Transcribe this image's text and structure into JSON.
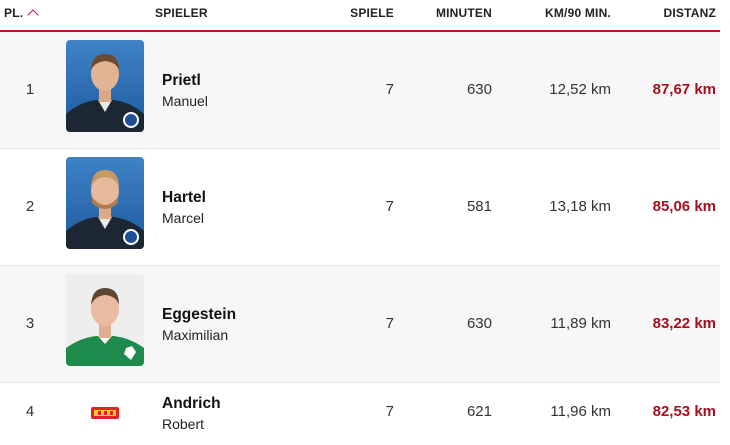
{
  "header": {
    "rank_label": "PL.",
    "player_label": "SPIELER",
    "games_label": "SPIELE",
    "minutes_label": "MINUTEN",
    "km90_label": "KM/90 MIN.",
    "distance_label": "DISTANZ"
  },
  "colors": {
    "accent": "#c8102e",
    "distance": "#a5101e",
    "row_alt": "#f7f7f7"
  },
  "rows": [
    {
      "rank": "1",
      "last_name": "Prietl",
      "first_name": "Manuel",
      "games": "7",
      "minutes": "630",
      "km_per_90": "12,52 km",
      "distance": "87,67 km",
      "club_icon": "arminia-bielefeld-crest"
    },
    {
      "rank": "2",
      "last_name": "Hartel",
      "first_name": "Marcel",
      "games": "7",
      "minutes": "581",
      "km_per_90": "13,18 km",
      "distance": "85,06 km",
      "club_icon": "arminia-bielefeld-crest"
    },
    {
      "rank": "3",
      "last_name": "Eggestein",
      "first_name": "Maximilian",
      "games": "7",
      "minutes": "630",
      "km_per_90": "11,89 km",
      "distance": "83,22 km",
      "club_icon": "werder-bremen-crest"
    },
    {
      "rank": "4",
      "last_name": "Andrich",
      "first_name": "Robert",
      "games": "7",
      "minutes": "621",
      "km_per_90": "11,96 km",
      "distance": "82,53 km",
      "club_icon": "union-berlin-logo"
    }
  ]
}
